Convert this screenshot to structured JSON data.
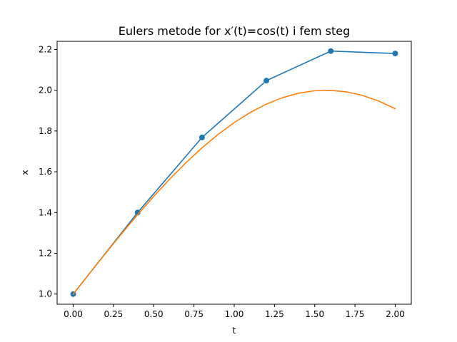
{
  "chart_data": {
    "type": "line",
    "title": "Eulers metode for x′(t)=cos(t) i fem steg",
    "xlabel": "t",
    "ylabel": "x",
    "xlim": [
      -0.1,
      2.1
    ],
    "ylim": [
      0.95,
      2.24
    ],
    "grid": false,
    "x_ticks": [
      0.0,
      0.25,
      0.5,
      0.75,
      1.0,
      1.25,
      1.5,
      1.75,
      2.0
    ],
    "x_tick_labels": [
      "0.00",
      "0.25",
      "0.50",
      "0.75",
      "1.00",
      "1.25",
      "1.50",
      "1.75",
      "2.00"
    ],
    "y_ticks": [
      1.0,
      1.2,
      1.4,
      1.6,
      1.8,
      2.0,
      2.2
    ],
    "y_tick_labels": [
      "1.0",
      "1.2",
      "1.4",
      "1.6",
      "1.8",
      "2.0",
      "2.2"
    ],
    "series": [
      {
        "kind": "line-markers",
        "color": "#1f77b4",
        "x": [
          0.0,
          0.4,
          0.8,
          1.2,
          1.6,
          2.0
        ],
        "y": [
          1.0,
          1.4,
          1.7684,
          2.0471,
          2.192,
          2.1803
        ]
      },
      {
        "kind": "line",
        "color": "#ff7f0e",
        "x": [
          0.0,
          0.1,
          0.2,
          0.3,
          0.4,
          0.5,
          0.6,
          0.7,
          0.8,
          0.9,
          1.0,
          1.1,
          1.2,
          1.3,
          1.4,
          1.5,
          1.6,
          1.7,
          1.8,
          1.9,
          2.0
        ],
        "y": [
          1.0,
          1.0998,
          1.1987,
          1.2955,
          1.3894,
          1.4794,
          1.5646,
          1.6442,
          1.7174,
          1.7833,
          1.8415,
          1.8912,
          1.932,
          1.9636,
          1.9854,
          1.9975,
          1.9996,
          1.9917,
          1.9738,
          1.9463,
          1.9093
        ]
      }
    ]
  }
}
